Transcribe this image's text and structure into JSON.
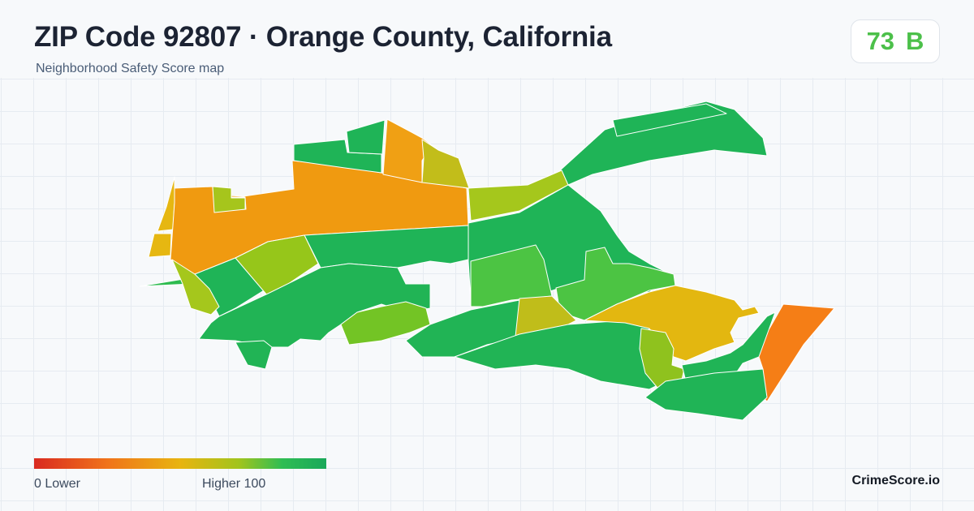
{
  "header": {
    "title": "ZIP Code 92807 · Orange County, California",
    "subtitle": "Neighborhood Safety Score map"
  },
  "score": {
    "value": "73",
    "grade": "B",
    "color": "#4cc04a"
  },
  "map": {
    "neighborhoods": [
      {
        "name": "nw-sliver-1",
        "color": "#e6b711"
      },
      {
        "name": "nw-sliver-2",
        "color": "#e6b711"
      },
      {
        "name": "nw-lake-sliver",
        "color": "#2dbb4f"
      },
      {
        "name": "west-large",
        "color": "#f09a10"
      },
      {
        "name": "north-tract-1",
        "color": "#1fb457"
      },
      {
        "name": "north-tract-2",
        "color": "#1fb457"
      },
      {
        "name": "north-central-orange",
        "color": "#f0a014"
      },
      {
        "name": "north-central-yellow",
        "color": "#c2bd1a"
      },
      {
        "name": "small-notch",
        "color": "#a6c51c"
      },
      {
        "name": "east-corridor",
        "color": "#1fb457"
      },
      {
        "name": "east-tip",
        "color": "#1fb457"
      },
      {
        "name": "central-band",
        "color": "#a5c71c"
      },
      {
        "name": "central-green-1",
        "color": "#1fb457"
      },
      {
        "name": "central-green-2",
        "color": "#1fb457"
      },
      {
        "name": "central-green-3",
        "color": "#1fb457"
      },
      {
        "name": "light-green-central",
        "color": "#4cc443"
      },
      {
        "name": "east-lightgreen",
        "color": "#4cc443"
      },
      {
        "name": "sw-yellowgreen",
        "color": "#96c61a"
      },
      {
        "name": "west-lower",
        "color": "#a5c71c"
      },
      {
        "name": "south-green-1",
        "color": "#21b455"
      },
      {
        "name": "south-lime",
        "color": "#73c425"
      },
      {
        "name": "south-green-2",
        "color": "#21b455"
      },
      {
        "name": "olive-tract",
        "color": "#c0bd1a"
      },
      {
        "name": "south-central-green",
        "color": "#21b455"
      },
      {
        "name": "se-yellow",
        "color": "#e3b710"
      },
      {
        "name": "se-yellowgreen",
        "color": "#8fc21e"
      },
      {
        "name": "far-east-orange",
        "color": "#f57e16"
      },
      {
        "name": "se-green",
        "color": "#20b456"
      },
      {
        "name": "south-strip",
        "color": "#20b456"
      },
      {
        "name": "bottom-island",
        "color": "#21b455"
      }
    ]
  },
  "legend": {
    "low_label": "0  Lower",
    "high_label": "Higher  100",
    "low_color": "#d92a20",
    "high_color": "#1aa85a"
  },
  "footer": {
    "brand": "CrimeScore.io"
  }
}
